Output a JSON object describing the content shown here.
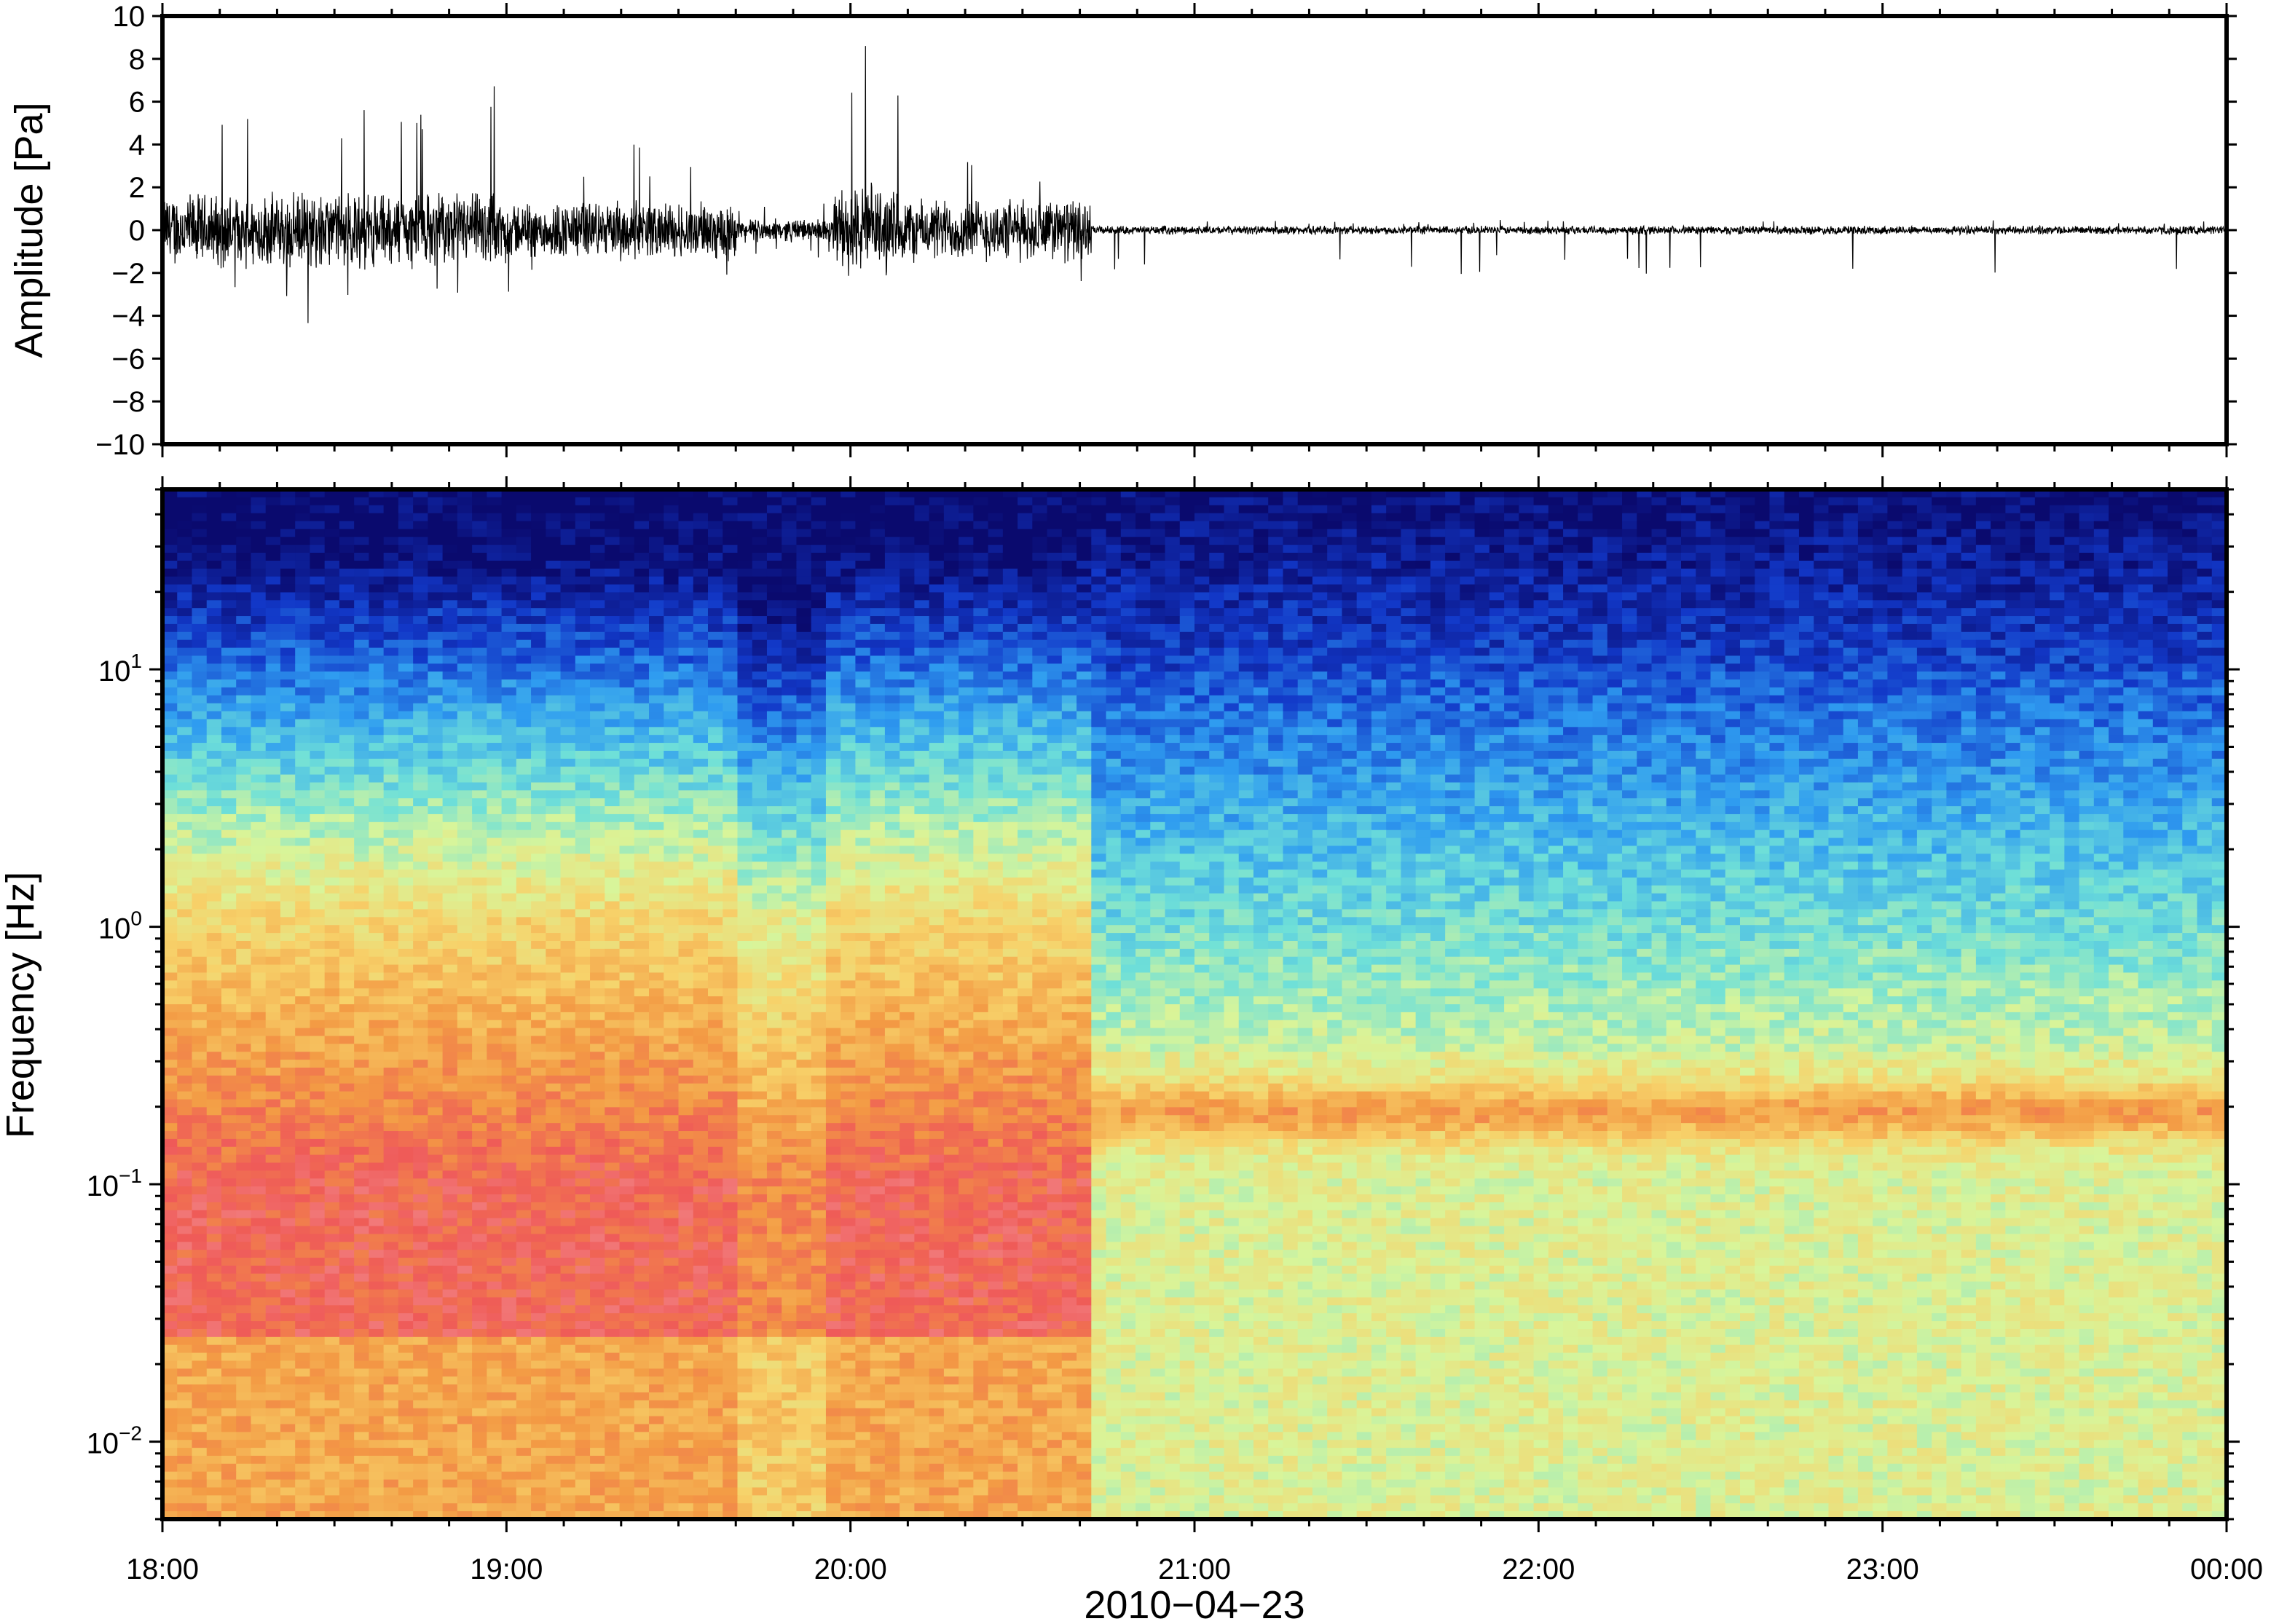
{
  "colors": {
    "frame": "#000000",
    "trace": "#000000",
    "colormap": [
      "#0a0a6e",
      "#1238c8",
      "#2f9cf0",
      "#6fe0d8",
      "#d8f59a",
      "#f7d26a",
      "#f39a44",
      "#ef5a58",
      "#f6b0b4"
    ]
  },
  "chart_data": [
    {
      "type": "line",
      "title": "",
      "ylabel": "Amplitude [Pa]",
      "ylim": [
        -10,
        10
      ],
      "yticks": [
        "10",
        "8",
        "6",
        "4",
        "2",
        "0",
        "−2",
        "−4",
        "−6",
        "−8",
        "−10"
      ],
      "yticks_values": [
        10,
        8,
        6,
        4,
        2,
        0,
        -2,
        -4,
        -6,
        -8,
        -10
      ],
      "xlim": [
        "18:00",
        "00:00"
      ],
      "series": [
        {
          "segments": [
            {
              "start": "18:00",
              "end": "19:00",
              "peak_pos": 6.8,
              "peak_neg": -4.4,
              "typical": 1.3
            },
            {
              "start": "19:00",
              "end": "19:40",
              "peak_pos": 4.0,
              "peak_neg": -3.3,
              "typical": 1.0
            },
            {
              "start": "19:40",
              "end": "19:57",
              "peak_pos": 1.5,
              "peak_neg": -1.5,
              "typical": 0.4
            },
            {
              "start": "19:57",
              "end": "20:10",
              "peak_pos": 9.1,
              "peak_neg": -4.9,
              "typical": 1.6
            },
            {
              "start": "20:10",
              "end": "20:42",
              "peak_pos": 4.1,
              "peak_neg": -2.7,
              "typical": 1.1
            },
            {
              "start": "20:42",
              "end": "00:00",
              "peak_pos": 0.5,
              "peak_neg": -2.1,
              "typical": 0.15
            }
          ]
        }
      ]
    },
    {
      "type": "heatmap",
      "title": "",
      "ylabel": "Frequency [Hz]",
      "xlabel": "2010−04−23",
      "yscale": "log",
      "ylim": [
        0.005,
        50
      ],
      "yticks": [
        {
          "base": "10",
          "exp": "1",
          "value": 10
        },
        {
          "base": "10",
          "exp": "0",
          "value": 1
        },
        {
          "base": "10",
          "exp": "−1",
          "value": 0.1
        },
        {
          "base": "10",
          "exp": "−2",
          "value": 0.01
        }
      ],
      "xticks": [
        "18:00",
        "19:00",
        "20:00",
        "21:00",
        "22:00",
        "23:00",
        "00:00"
      ],
      "xlim": [
        "18:00",
        "00:00"
      ],
      "regimes": [
        {
          "start": "18:00",
          "end": "20:42",
          "state": "high energy broadband (peak 0.02–0.2 Hz)"
        },
        {
          "start": "20:42",
          "end": "00:00",
          "state": "quiet with band near 0.2 Hz"
        }
      ]
    }
  ]
}
